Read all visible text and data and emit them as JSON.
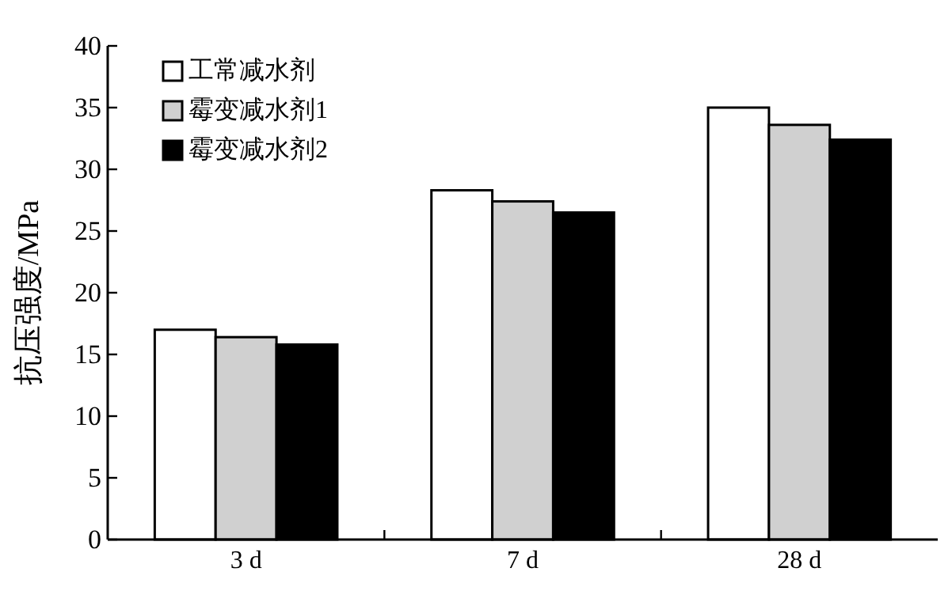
{
  "chart_data": {
    "type": "bar",
    "ylabel": "抗压强度/MPa",
    "categories": [
      "3 d",
      "7 d",
      "28 d"
    ],
    "series": [
      {
        "name": "工常减水剂",
        "color": "#ffffff",
        "values": [
          17.0,
          28.3,
          35.0
        ]
      },
      {
        "name": "霉变减水剂1",
        "color": "#d0d0d0",
        "values": [
          16.4,
          27.4,
          33.6
        ]
      },
      {
        "name": "霉变减水剂2",
        "color": "#000000",
        "values": [
          15.8,
          26.5,
          32.4
        ]
      }
    ],
    "ylim": [
      0,
      40
    ],
    "yticks": [
      0,
      5,
      10,
      15,
      20,
      25,
      30,
      35,
      40
    ],
    "legend": "top left",
    "grid": false
  }
}
